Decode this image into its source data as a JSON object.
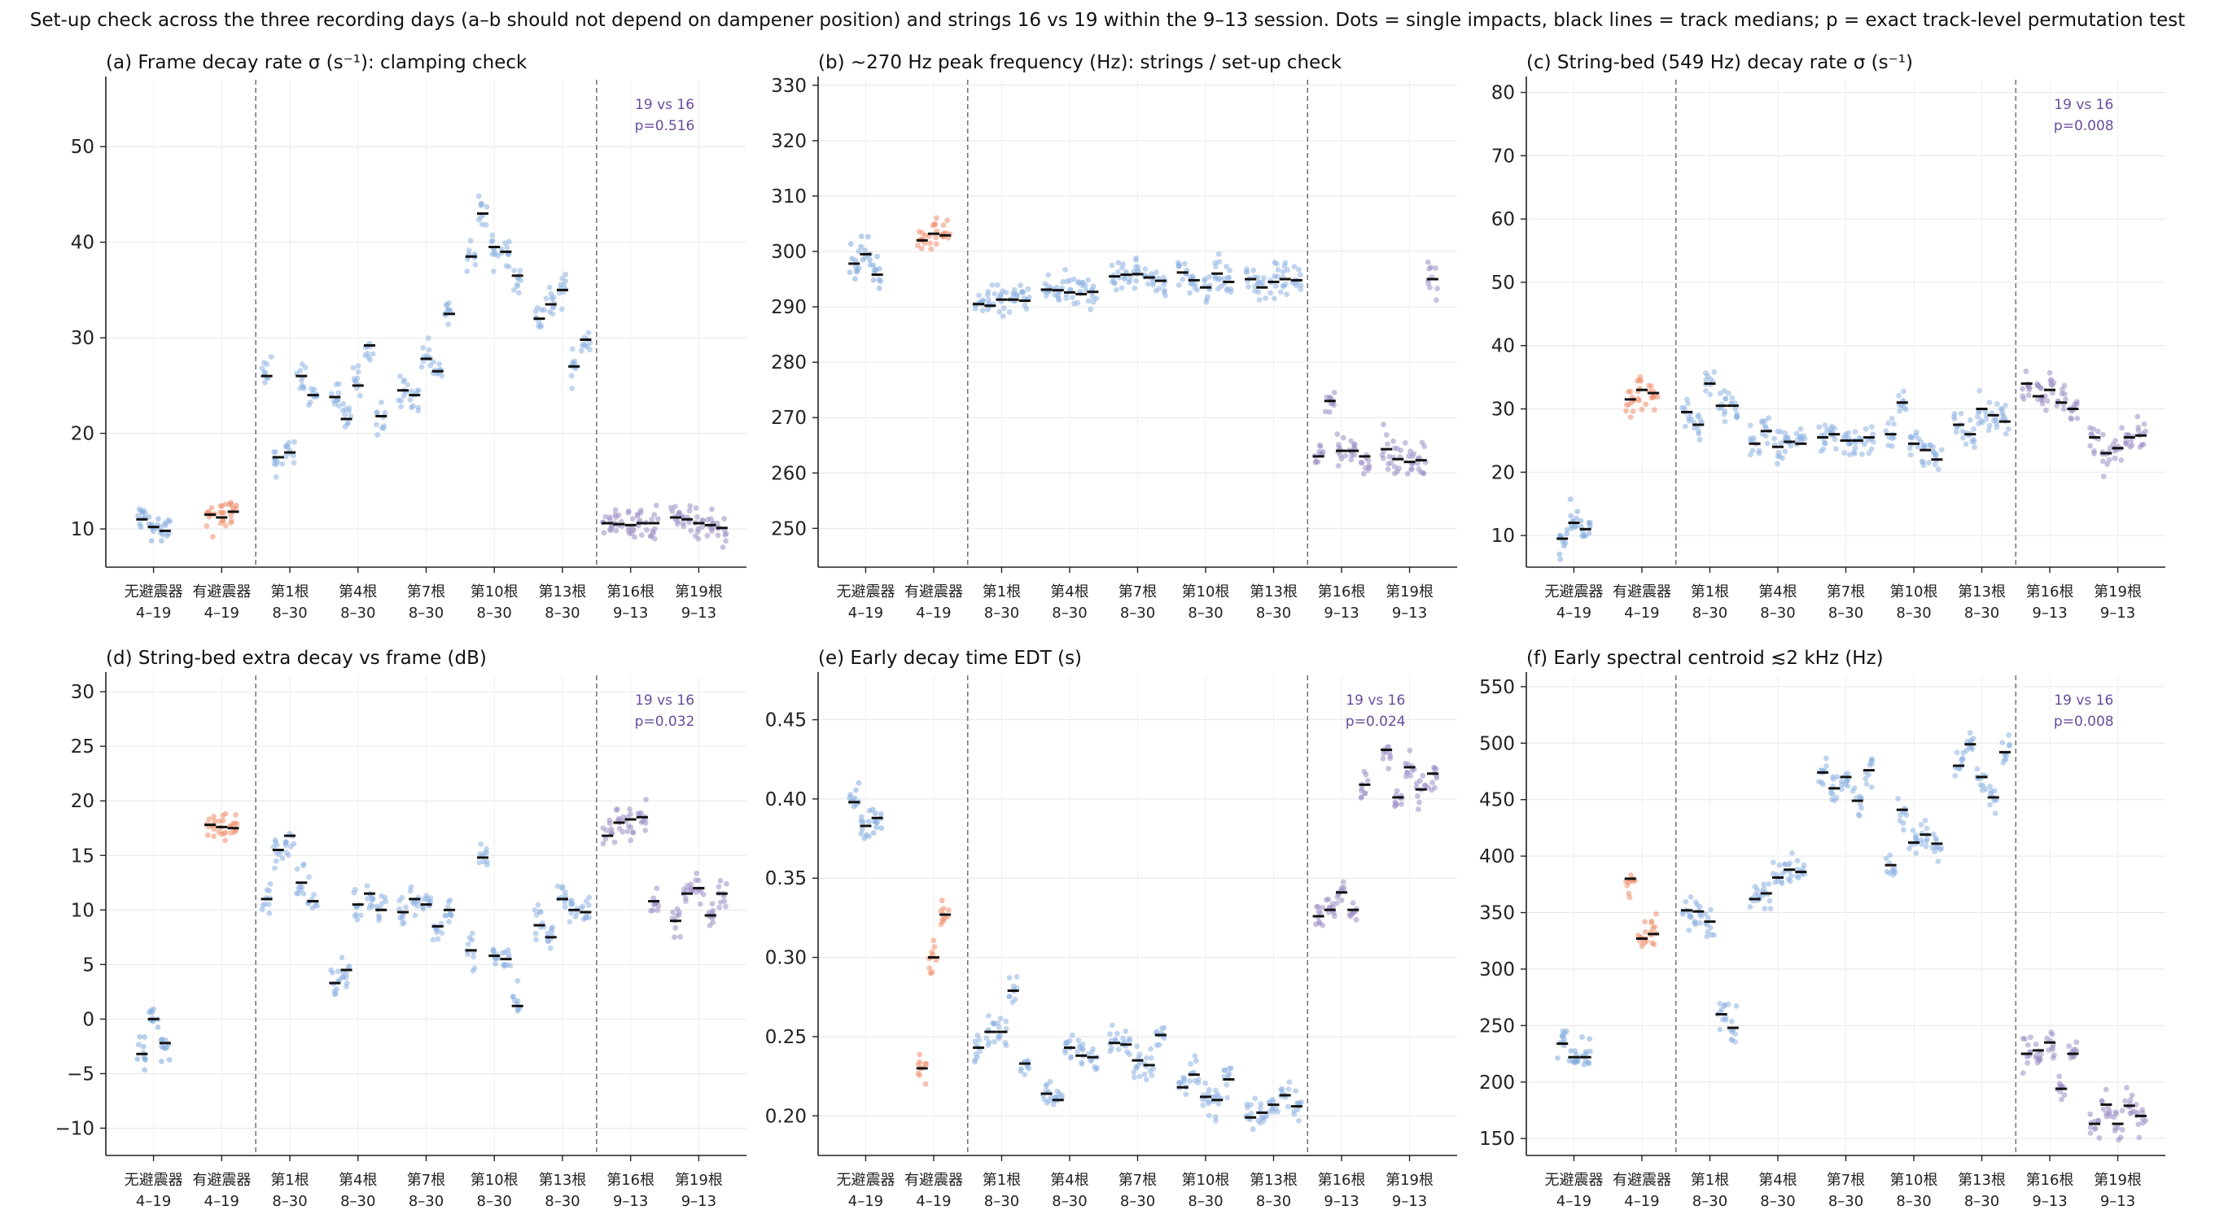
{
  "suptitle": "Set-up check across the three recording days (a–b should not depend on dampener position) and strings 16 vs 19 within the 9–13 session. Dots = single impacts, black lines = track medians; p = exact track-level permutation test",
  "colors": {
    "day_4_19_off": "#7fa9dc",
    "day_4_19_on": "#ef8e6c",
    "day_8_30": "#8eb2e2",
    "day_9_13": "#9c8ec4",
    "median": "#111111",
    "annotation": "#6a4c9c",
    "divider": "#777777"
  },
  "groups": [
    {
      "line1": "无避震器",
      "line2": "4–19"
    },
    {
      "line1": "有避震器",
      "line2": "4–19"
    },
    {
      "line1": "第1根",
      "line2": "8–30"
    },
    {
      "line1": "第4根",
      "line2": "8–30"
    },
    {
      "line1": "第7根",
      "line2": "8–30"
    },
    {
      "line1": "第10根",
      "line2": "8–30"
    },
    {
      "line1": "第13根",
      "line2": "8–30"
    },
    {
      "line1": "第16根",
      "line2": "9–13"
    },
    {
      "line1": "第19根",
      "line2": "9–13"
    }
  ],
  "chart_data": [
    {
      "type": "scatter",
      "title": "(a) Frame decay rate σ (s⁻¹): clamping check",
      "ylim": [
        6,
        57
      ],
      "yticks": [
        10,
        20,
        30,
        40,
        50
      ],
      "group_medians": [
        [
          11.0,
          10.2,
          9.8
        ],
        [
          11.5,
          11.2,
          11.8
        ],
        [
          26.0,
          17.5,
          18.0,
          26.0,
          24.0
        ],
        [
          23.8,
          21.5,
          25.0,
          29.2,
          21.8
        ],
        [
          24.5,
          24.0,
          27.8,
          26.5,
          32.5
        ],
        [
          38.5,
          43.0,
          39.5,
          39.0,
          36.5
        ],
        [
          32.0,
          33.5,
          35.0,
          27.0,
          29.8
        ],
        [
          10.6,
          10.5,
          10.4,
          10.6,
          10.6
        ],
        [
          11.2,
          11.0,
          10.6,
          10.4,
          10.1
        ]
      ],
      "annotation": {
        "line1": "19 vs 16",
        "line2": "p=0.516"
      }
    },
    {
      "type": "scatter",
      "title": "(b) ~270 Hz peak frequency (Hz): strings / set-up check",
      "ylim": [
        243,
        331
      ],
      "yticks": [
        250,
        260,
        270,
        280,
        290,
        300,
        310,
        320,
        330
      ],
      "group_medians": [
        [
          297.8,
          299.5,
          295.8
        ],
        [
          302.0,
          303.2,
          302.9
        ],
        [
          290.5,
          290.2,
          291.3,
          291.3,
          291.1
        ],
        [
          293.1,
          293.0,
          292.6,
          292.3,
          292.7
        ],
        [
          295.5,
          295.8,
          295.9,
          295.3,
          294.7
        ],
        [
          296.2,
          294.8,
          293.5,
          296.0,
          294.5
        ],
        [
          295.0,
          293.5,
          294.5,
          295.0,
          294.8
        ],
        [
          263.0,
          273.0,
          264.0,
          264.0,
          263.0
        ],
        [
          264.3,
          262.5,
          262.0,
          262.3,
          295.0
        ]
      ]
    },
    {
      "type": "scatter",
      "title": "(c) String-bed (549 Hz) decay rate σ (s⁻¹)",
      "ylim": [
        5,
        82
      ],
      "yticks": [
        10,
        20,
        30,
        40,
        50,
        60,
        70,
        80
      ],
      "group_medians": [
        [
          9.5,
          12.0,
          11.0
        ],
        [
          31.5,
          33.0,
          32.5
        ],
        [
          29.5,
          27.5,
          34.0,
          30.5,
          30.5
        ],
        [
          24.5,
          26.5,
          24.0,
          24.8,
          24.5
        ],
        [
          25.5,
          26.0,
          25.0,
          25.0,
          25.5
        ],
        [
          26.0,
          31.0,
          24.5,
          23.5,
          22.0
        ],
        [
          27.5,
          26.0,
          30.0,
          29.0,
          28.0
        ],
        [
          34.0,
          32.0,
          33.0,
          31.0,
          30.0
        ],
        [
          25.5,
          23.0,
          23.8,
          25.5,
          25.8
        ]
      ],
      "annotation": {
        "line1": "19 vs 16",
        "line2": "p=0.008"
      }
    },
    {
      "type": "scatter",
      "title": "(d) String-bed extra decay vs frame (dB)",
      "ylim": [
        -12.5,
        31.5
      ],
      "yticks": [
        -10,
        -5,
        0,
        5,
        10,
        15,
        20,
        25,
        30
      ],
      "group_medians": [
        [
          -3.2,
          0.0,
          -2.2
        ],
        [
          17.8,
          17.6,
          17.5
        ],
        [
          11.0,
          15.5,
          16.8,
          12.5,
          10.8
        ],
        [
          3.3,
          4.5,
          10.5,
          11.5,
          10.0
        ],
        [
          9.8,
          11.0,
          10.5,
          8.5,
          10.0
        ],
        [
          6.3,
          14.8,
          5.8,
          5.5,
          1.2
        ],
        [
          8.6,
          7.5,
          11.0,
          10.0,
          9.8
        ],
        [
          16.8,
          18.0,
          18.3,
          18.5,
          10.8
        ],
        [
          9.0,
          11.5,
          12.0,
          9.5,
          11.5
        ]
      ],
      "annotation": {
        "line1": "19 vs 16",
        "line2": "p=0.032"
      }
    },
    {
      "type": "scatter",
      "title": "(e) Early decay time EDT (s)",
      "ylim": [
        0.175,
        0.478
      ],
      "yticks": [
        0.2,
        0.25,
        0.3,
        0.35,
        0.4,
        0.45
      ],
      "group_medians": [
        [
          0.398,
          0.383,
          0.388
        ],
        [
          0.23,
          0.3,
          0.327
        ],
        [
          0.243,
          0.253,
          0.253,
          0.279,
          0.233
        ],
        [
          0.214,
          0.21,
          0.243,
          0.238,
          0.237
        ],
        [
          0.246,
          0.245,
          0.235,
          0.232,
          0.251
        ],
        [
          0.218,
          0.226,
          0.212,
          0.21,
          0.223
        ],
        [
          0.199,
          0.202,
          0.207,
          0.213,
          0.206
        ],
        [
          0.326,
          0.33,
          0.341,
          0.33,
          0.409
        ],
        [
          0.431,
          0.401,
          0.42,
          0.406,
          0.416
        ]
      ],
      "annotation": {
        "line1": "19 vs 16",
        "line2": "p=0.024"
      }
    },
    {
      "type": "scatter",
      "title": "(f) Early spectral centroid ≲2 kHz (Hz)",
      "ylim": [
        135,
        560
      ],
      "yticks": [
        150,
        200,
        250,
        300,
        350,
        400,
        450,
        500,
        550
      ],
      "group_medians": [
        [
          234,
          222,
          222
        ],
        [
          380,
          327,
          331
        ],
        [
          352,
          351,
          342,
          260,
          248
        ],
        [
          362,
          367,
          381,
          388,
          386
        ],
        [
          474,
          460,
          470,
          449,
          476
        ],
        [
          392,
          441,
          412,
          419,
          411
        ],
        [
          480,
          499,
          470,
          452,
          492
        ],
        [
          225,
          228,
          235,
          194,
          225
        ],
        [
          163,
          180,
          163,
          179,
          170
        ]
      ],
      "annotation": {
        "line1": "19 vs 16",
        "line2": "p=0.008"
      }
    }
  ]
}
